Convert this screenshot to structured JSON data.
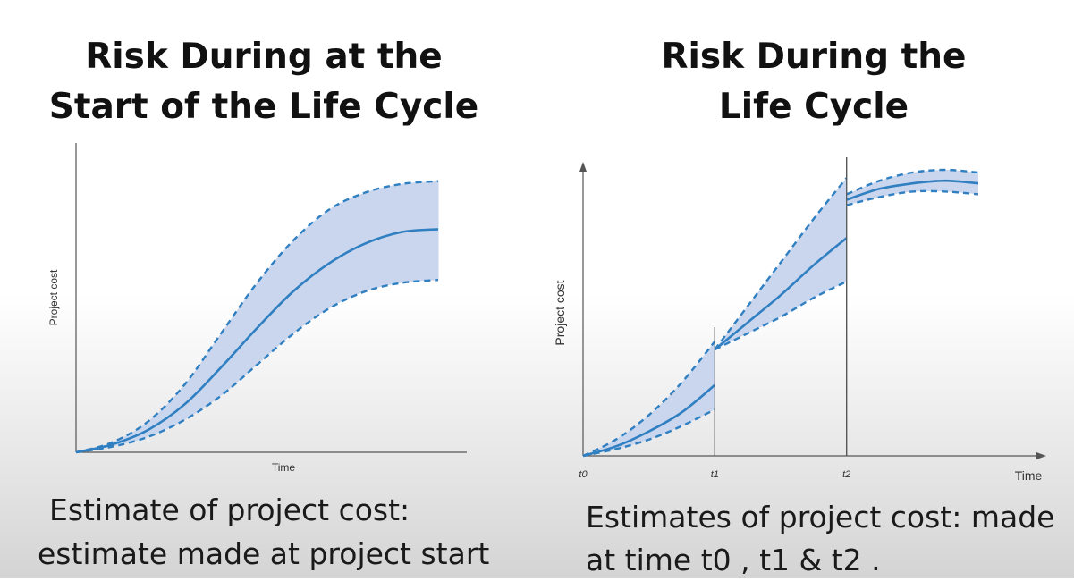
{
  "chart_data": [
    {
      "type": "area",
      "title": "Risk During at the Start of the Life Cycle",
      "title_lines": [
        "Risk During at the",
        "Start of the Life Cycle"
      ],
      "xlabel": "Time",
      "ylabel": "Project cost",
      "caption_lines": [
        "Estimate of  project cost:",
        "estimate made at project start"
      ],
      "xlim": [
        0,
        1
      ],
      "ylim": [
        0,
        1
      ],
      "series": [
        {
          "role": "upper",
          "x": [
            0,
            0.1,
            0.2,
            0.3,
            0.4,
            0.5,
            0.6,
            0.7,
            0.8,
            0.9,
            1.0
          ],
          "y": [
            0,
            0.035,
            0.11,
            0.24,
            0.42,
            0.6,
            0.75,
            0.86,
            0.92,
            0.95,
            0.96
          ]
        },
        {
          "role": "estimate",
          "x": [
            0,
            0.1,
            0.2,
            0.3,
            0.4,
            0.5,
            0.6,
            0.7,
            0.8,
            0.9,
            1.0
          ],
          "y": [
            0,
            0.028,
            0.08,
            0.17,
            0.3,
            0.44,
            0.57,
            0.67,
            0.74,
            0.78,
            0.79
          ]
        },
        {
          "role": "lower",
          "x": [
            0,
            0.1,
            0.2,
            0.3,
            0.4,
            0.5,
            0.6,
            0.7,
            0.8,
            0.9,
            1.0
          ],
          "y": [
            0,
            0.02,
            0.055,
            0.115,
            0.2,
            0.31,
            0.42,
            0.51,
            0.57,
            0.6,
            0.61
          ]
        }
      ],
      "colors": {
        "line": "#2f7fc1",
        "band": "#c9d6ee",
        "axis": "#555555"
      }
    },
    {
      "type": "area",
      "title": "Risk During the Life Cycle",
      "title_lines": [
        "Risk During the",
        "Life Cycle"
      ],
      "xlabel": "Time",
      "ylabel": "Project cost",
      "caption_lines": [
        "Estimates of project cost: made",
        "at time t0 , t1 & t2 ."
      ],
      "x_ticks": [
        "t0",
        "t1",
        "t2"
      ],
      "tick_values": [
        0,
        1,
        2
      ],
      "xlim": [
        0,
        3.6
      ],
      "ylim": [
        0,
        1.05
      ],
      "segments": [
        {
          "start": "t0",
          "x": [
            0,
            0.25,
            0.5,
            0.75,
            1.0
          ],
          "estimate": [
            0,
            0.035,
            0.09,
            0.16,
            0.26
          ],
          "upper": [
            0,
            0.06,
            0.15,
            0.27,
            0.42
          ],
          "lower": [
            0,
            0.025,
            0.06,
            0.11,
            0.17
          ]
        },
        {
          "start": "t1",
          "x": [
            1.0,
            1.25,
            1.5,
            1.75,
            2.0
          ],
          "estimate": [
            0.39,
            0.49,
            0.59,
            0.7,
            0.8
          ],
          "upper": [
            0.39,
            0.55,
            0.71,
            0.87,
            1.02
          ],
          "lower": [
            0.39,
            0.45,
            0.51,
            0.58,
            0.64
          ]
        },
        {
          "start": "t2",
          "x": [
            2.0,
            2.25,
            2.5,
            2.75,
            3.0
          ],
          "estimate": [
            0.94,
            0.98,
            1.0,
            1.01,
            1.0
          ],
          "upper": [
            0.96,
            1.01,
            1.04,
            1.05,
            1.04
          ],
          "lower": [
            0.92,
            0.95,
            0.97,
            0.97,
            0.96
          ]
        }
      ],
      "colors": {
        "line": "#2f7fc1",
        "band": "#c9d6ee",
        "axis": "#555555"
      }
    }
  ]
}
